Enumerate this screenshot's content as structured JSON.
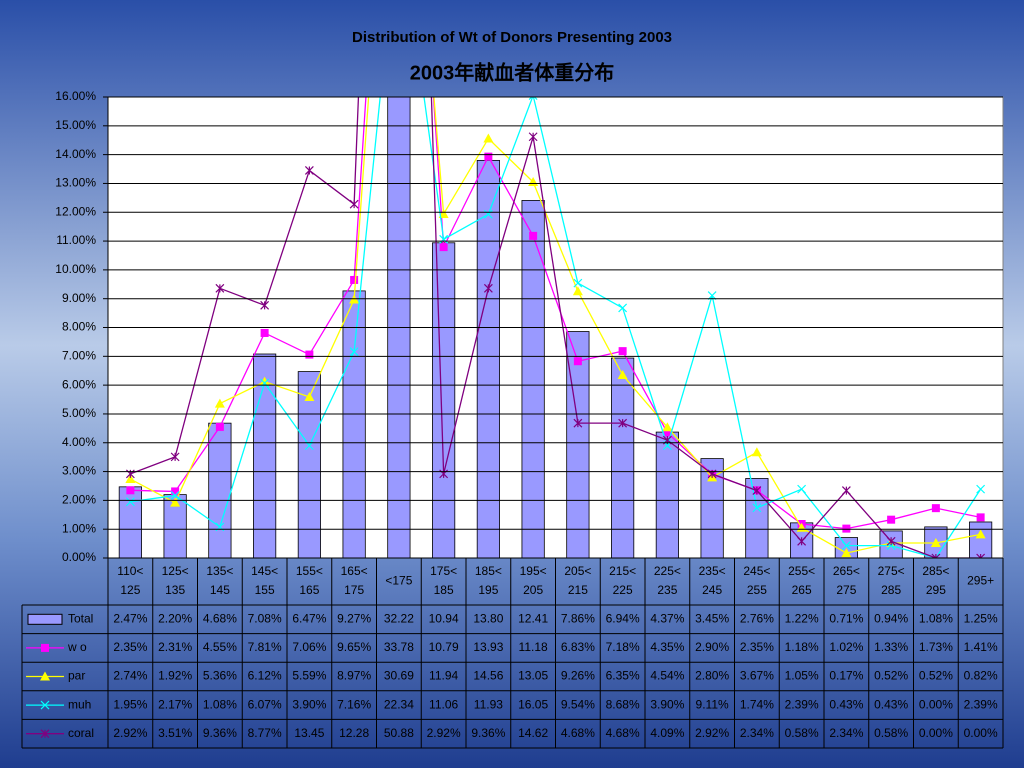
{
  "chart_data": {
    "type": "bar",
    "title": "Distribution of Wt of Donors Presenting 2003",
    "subtitle": "2003年献血者体重分布",
    "categories": [
      [
        "110<",
        "125"
      ],
      [
        "125<",
        "135"
      ],
      [
        "135<",
        "145"
      ],
      [
        "145<",
        "155"
      ],
      [
        "155<",
        "165"
      ],
      [
        "165<",
        "175"
      ],
      [
        "<175"
      ],
      [
        "175<",
        "185"
      ],
      [
        "185<",
        "195"
      ],
      [
        "195<",
        "205"
      ],
      [
        "205<",
        "215"
      ],
      [
        "215<",
        "225"
      ],
      [
        "225<",
        "235"
      ],
      [
        "235<",
        "245"
      ],
      [
        "245<",
        "255"
      ],
      [
        "255<",
        "265"
      ],
      [
        "265<",
        "275"
      ],
      [
        "275<",
        "285"
      ],
      [
        "285<",
        "295"
      ],
      [
        "295+"
      ]
    ],
    "ylim": [
      0,
      16
    ],
    "yticks": [
      {
        "value": 0,
        "label": "0.00%"
      },
      {
        "value": 1,
        "label": "1.00%"
      },
      {
        "value": 2,
        "label": "2.00%"
      },
      {
        "value": 3,
        "label": "3.00%"
      },
      {
        "value": 4,
        "label": "4.00%"
      },
      {
        "value": 5,
        "label": "5.00%"
      },
      {
        "value": 6,
        "label": "6.00%"
      },
      {
        "value": 7,
        "label": "7.00%"
      },
      {
        "value": 8,
        "label": "8.00%"
      },
      {
        "value": 9,
        "label": "9.00%"
      },
      {
        "value": 10,
        "label": "10.00%"
      },
      {
        "value": 11,
        "label": "11.00%"
      },
      {
        "value": 12,
        "label": "12.00%"
      },
      {
        "value": 13,
        "label": "13.00%"
      },
      {
        "value": 14,
        "label": "14.00%"
      },
      {
        "value": 15,
        "label": "15.00%"
      },
      {
        "value": 16,
        "label": "16.00%"
      }
    ],
    "grid": true,
    "series": [
      {
        "name": "Total",
        "type": "bar",
        "color": "#9999ff",
        "marker": "bar",
        "values": [
          2.47,
          2.2,
          4.68,
          7.08,
          6.47,
          9.27,
          32.22,
          10.94,
          13.8,
          12.41,
          7.86,
          6.94,
          4.37,
          3.45,
          2.76,
          1.22,
          0.71,
          0.94,
          1.08,
          1.25
        ],
        "value_labels": [
          "2.47%",
          "2.20%",
          "4.68%",
          "7.08%",
          "6.47%",
          "9.27%",
          "32.22",
          "10.94",
          "13.80",
          "12.41",
          "7.86%",
          "6.94%",
          "4.37%",
          "3.45%",
          "2.76%",
          "1.22%",
          "0.71%",
          "0.94%",
          "1.08%",
          "1.25%"
        ]
      },
      {
        "name": "w o",
        "type": "line",
        "color": "#ff00ff",
        "marker": "square",
        "values": [
          2.35,
          2.31,
          4.55,
          7.81,
          7.06,
          9.65,
          33.78,
          10.79,
          13.93,
          11.18,
          6.83,
          7.18,
          4.35,
          2.9,
          2.35,
          1.18,
          1.02,
          1.33,
          1.73,
          1.41
        ],
        "value_labels": [
          "2.35%",
          "2.31%",
          "4.55%",
          "7.81%",
          "7.06%",
          "9.65%",
          "33.78",
          "10.79",
          "13.93",
          "11.18",
          "6.83%",
          "7.18%",
          "4.35%",
          "2.90%",
          "2.35%",
          "1.18%",
          "1.02%",
          "1.33%",
          "1.73%",
          "1.41%"
        ]
      },
      {
        "name": "par",
        "type": "line",
        "color": "#ffff00",
        "marker": "triangle",
        "values": [
          2.74,
          1.92,
          5.36,
          6.12,
          5.59,
          8.97,
          30.69,
          11.94,
          14.56,
          13.05,
          9.26,
          6.35,
          4.54,
          2.8,
          3.67,
          1.05,
          0.17,
          0.52,
          0.52,
          0.82
        ],
        "value_labels": [
          "2.74%",
          "1.92%",
          "5.36%",
          "6.12%",
          "5.59%",
          "8.97%",
          "30.69",
          "11.94",
          "14.56",
          "13.05",
          "9.26%",
          "6.35%",
          "4.54%",
          "2.80%",
          "3.67%",
          "1.05%",
          "0.17%",
          "0.52%",
          "0.52%",
          "0.82%"
        ]
      },
      {
        "name": "muh",
        "type": "line",
        "color": "#00ffff",
        "marker": "x",
        "values": [
          1.95,
          2.17,
          1.08,
          6.07,
          3.9,
          7.16,
          22.34,
          11.06,
          11.93,
          16.05,
          9.54,
          8.68,
          3.9,
          9.11,
          1.74,
          2.39,
          0.43,
          0.43,
          0.0,
          2.39
        ],
        "value_labels": [
          "1.95%",
          "2.17%",
          "1.08%",
          "6.07%",
          "3.90%",
          "7.16%",
          "22.34",
          "11.06",
          "11.93",
          "16.05",
          "9.54%",
          "8.68%",
          "3.90%",
          "9.11%",
          "1.74%",
          "2.39%",
          "0.43%",
          "0.43%",
          "0.00%",
          "2.39%"
        ]
      },
      {
        "name": "coral",
        "type": "line",
        "color": "#800080",
        "marker": "star",
        "values": [
          2.92,
          3.51,
          9.36,
          8.77,
          13.45,
          12.28,
          50.88,
          2.92,
          9.36,
          14.62,
          4.68,
          4.68,
          4.09,
          2.92,
          2.34,
          0.58,
          2.34,
          0.58,
          0.0,
          0.0
        ],
        "value_labels": [
          "2.92%",
          "3.51%",
          "9.36%",
          "8.77%",
          "13.45",
          "12.28",
          "50.88",
          "2.92%",
          "9.36%",
          "14.62",
          "4.68%",
          "4.68%",
          "4.09%",
          "2.92%",
          "2.34%",
          "0.58%",
          "2.34%",
          "0.58%",
          "0.00%",
          "0.00%"
        ]
      }
    ]
  }
}
